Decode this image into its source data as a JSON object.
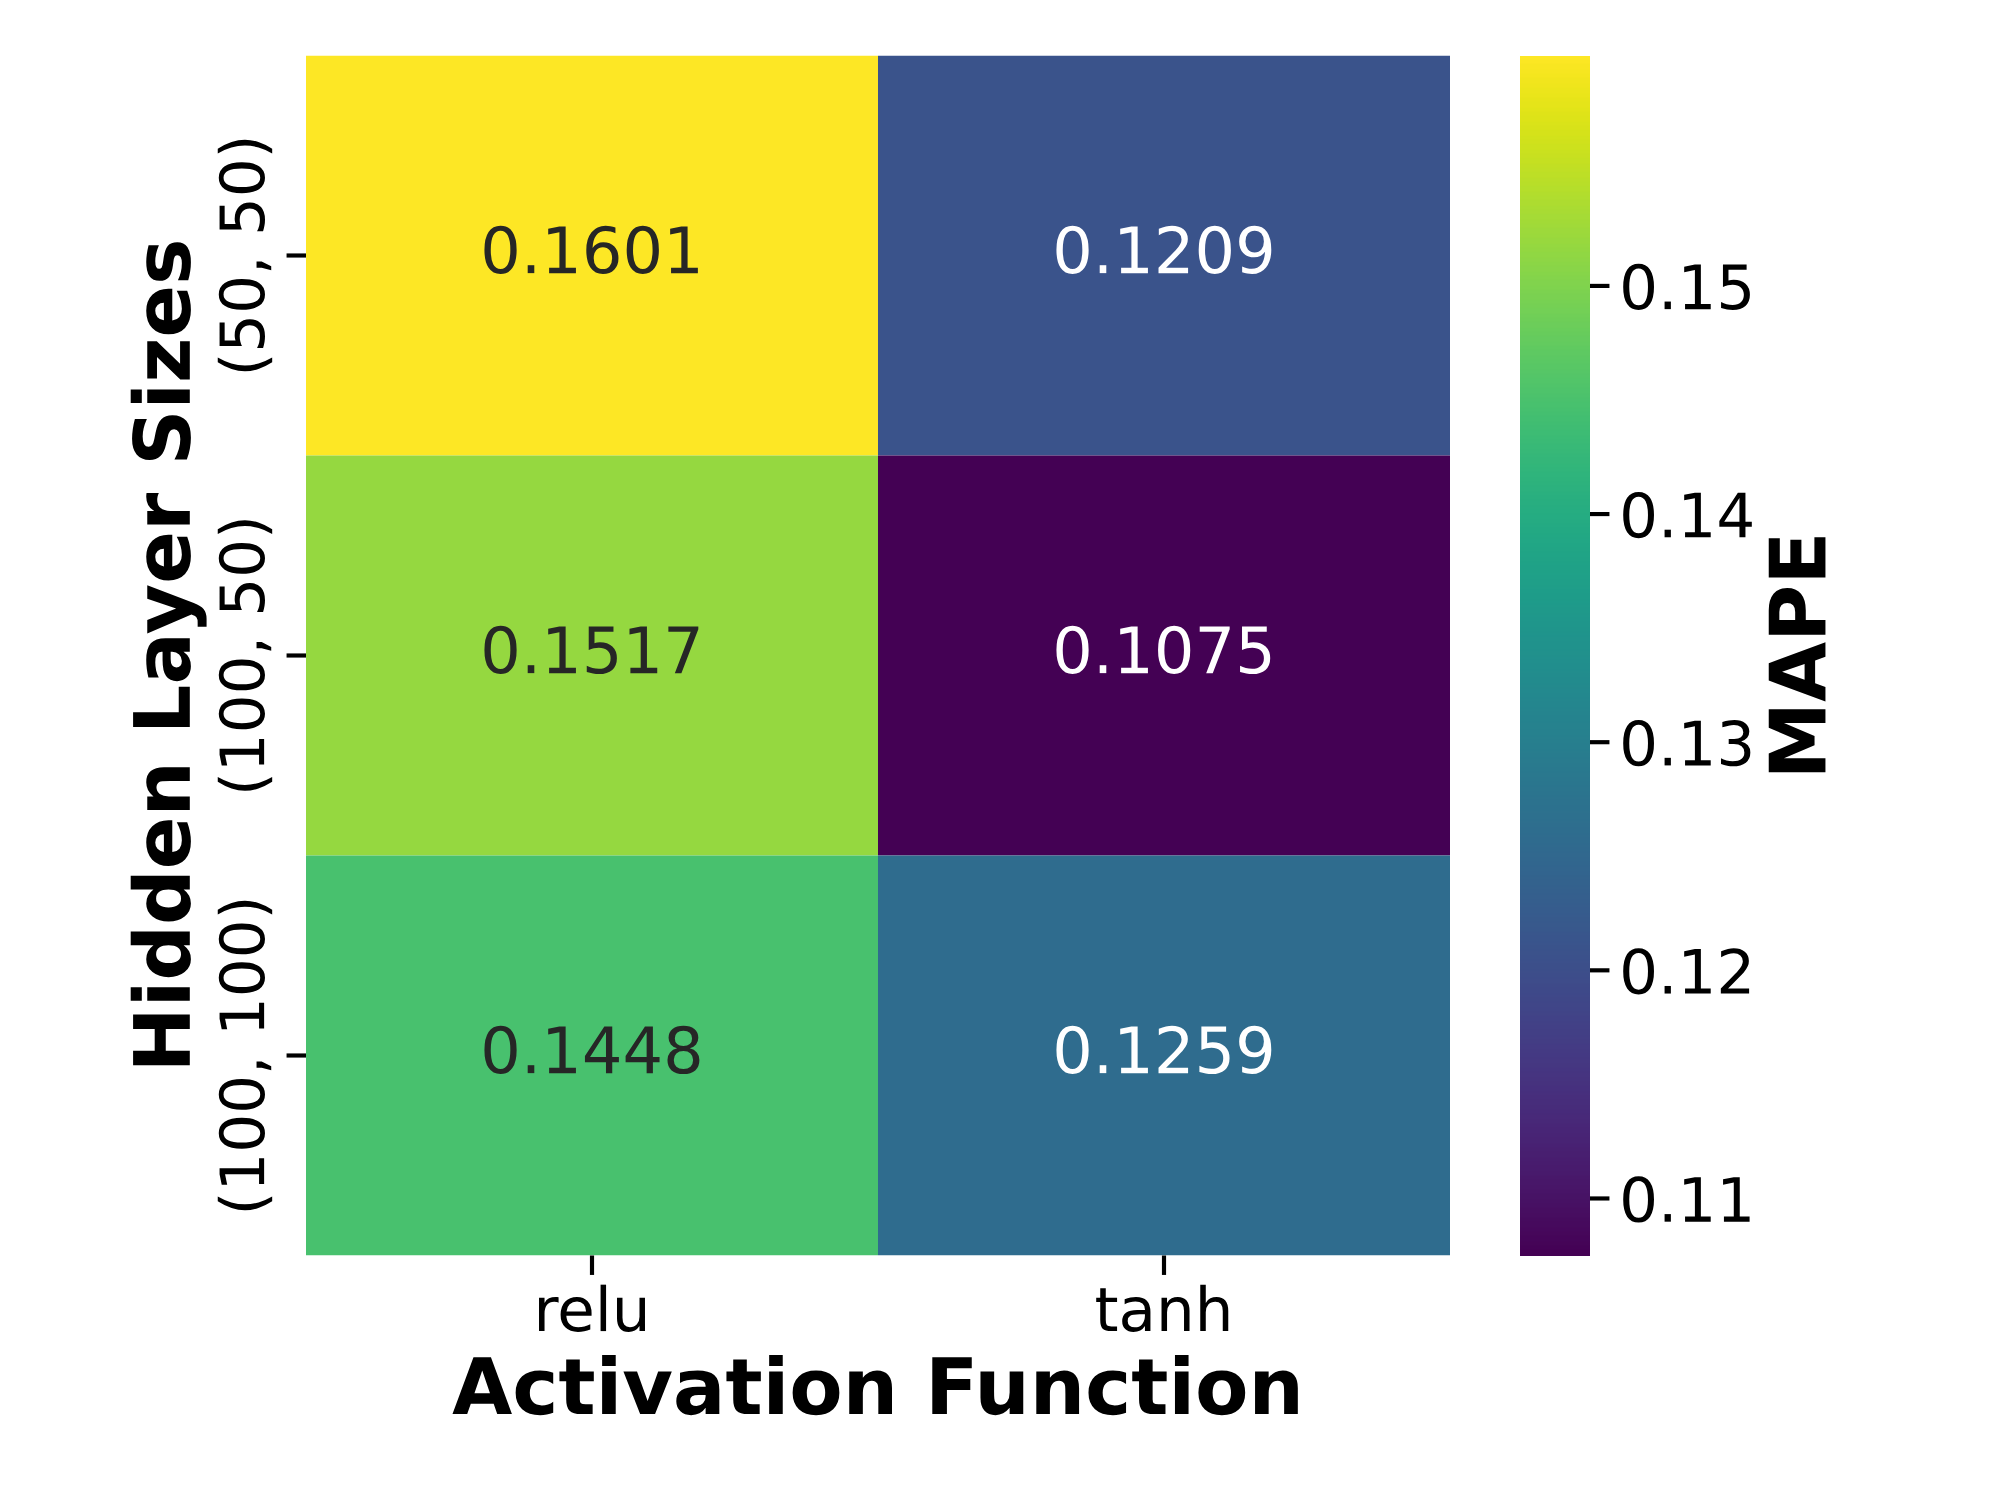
{
  "chart_data": {
    "type": "heatmap",
    "xlabel": "Activation Function",
    "ylabel": "Hidden Layer Sizes",
    "clabel": "MAPE",
    "categories": [
      "relu",
      "tanh"
    ],
    "y_categories": [
      "(50, 50)",
      "(100, 50)",
      "(100, 100)"
    ],
    "cells": [
      [
        0.1601,
        0.1209
      ],
      [
        0.1517,
        0.1075
      ],
      [
        0.1448,
        0.1259
      ]
    ],
    "data_labels": true,
    "clim": [
      0.1075,
      0.1601
    ],
    "cticks": [
      0.11,
      0.12,
      0.13,
      0.14,
      0.15
    ]
  }
}
